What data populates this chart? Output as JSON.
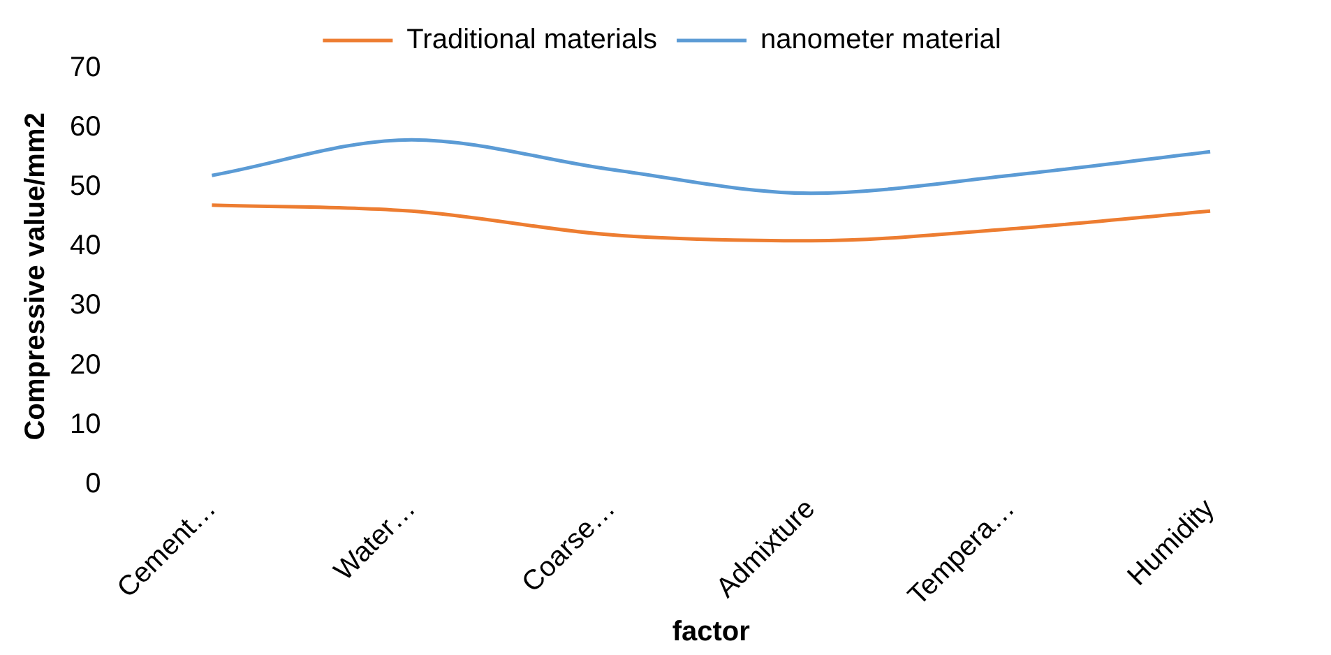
{
  "chart_data": {
    "type": "line",
    "xlabel": "factor",
    "ylabel": "Compressive value/mm2",
    "categories": [
      "Cement…",
      "Water…",
      "Coarse…",
      "Admixture",
      "Tempera…",
      "Humidity"
    ],
    "series": [
      {
        "name": "Traditional materials",
        "color": "#ed7d31",
        "values": [
          47,
          46,
          42,
          41,
          43,
          46
        ]
      },
      {
        "name": "nanometer material",
        "color": "#5b9bd5",
        "values": [
          52,
          58,
          53,
          49,
          52,
          56
        ]
      }
    ],
    "ylim": [
      0,
      70
    ],
    "yticks": [
      0,
      10,
      20,
      30,
      40,
      50,
      60,
      70
    ],
    "grid": false,
    "legend": "top",
    "marker": "none",
    "line_style": "solid"
  }
}
